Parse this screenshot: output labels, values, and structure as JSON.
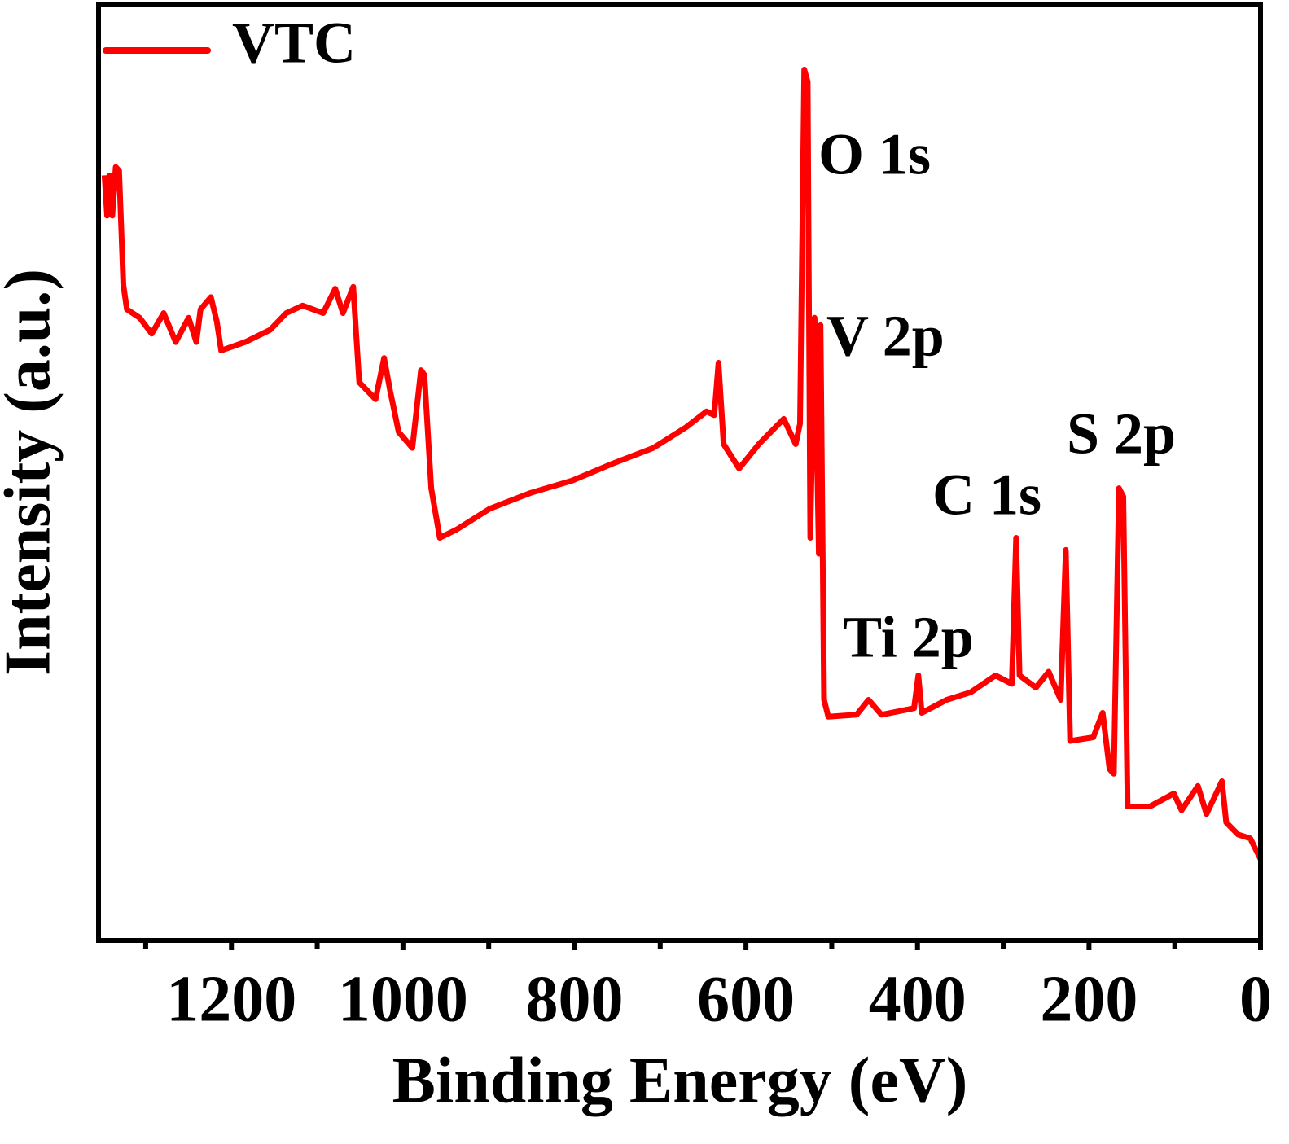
{
  "chart_data": {
    "type": "line",
    "xlabel": "Binding Energy (eV)",
    "ylabel": "Intensity (a.u.)",
    "xlim": [
      1355,
      0
    ],
    "ylim": [
      0,
      100
    ],
    "xticks": [
      1200,
      1000,
      800,
      600,
      400,
      200,
      0
    ],
    "xminor": [
      1300,
      1100,
      900,
      700,
      500,
      300,
      100
    ],
    "legend": "upper left",
    "annotations": [
      "O 1s",
      "V 2p",
      "Ti 2p",
      "C 1s",
      "S 2p"
    ],
    "series": [
      {
        "name": "VTC",
        "color": "#ff0000",
        "x": [
          1348,
          1345,
          1342,
          1339,
          1335,
          1331,
          1326,
          1322,
          1307,
          1293,
          1279,
          1265,
          1250,
          1241,
          1236,
          1224,
          1217,
          1212,
          1184,
          1155,
          1136,
          1117,
          1093,
          1079,
          1070,
          1058,
          1051,
          1032,
          1022,
          1015,
          1005,
          989,
          979,
          975,
          967,
          957,
          937,
          899,
          851,
          803,
          756,
          708,
          670,
          646,
          637,
          632,
          626,
          608,
          585,
          556,
          542,
          537,
          532,
          528,
          525,
          520,
          515,
          513,
          509,
          504,
          471,
          457,
          442,
          404,
          399,
          395,
          366,
          338,
          309,
          290,
          285,
          281,
          262,
          247,
          233,
          227,
          222,
          195,
          184,
          176,
          171,
          165,
          160,
          155,
          129,
          101,
          92,
          73,
          63,
          45,
          40,
          26,
          12,
          0
        ],
        "values": [
          81.7,
          77.4,
          81.7,
          77.4,
          82.6,
          82.2,
          70.0,
          67.4,
          66.5,
          64.8,
          67.0,
          63.9,
          66.5,
          63.9,
          67.4,
          68.7,
          66.1,
          63.0,
          63.9,
          65.2,
          67.0,
          67.8,
          67.0,
          69.6,
          67.0,
          69.8,
          59.6,
          57.8,
          62.2,
          58.7,
          54.3,
          52.6,
          60.9,
          60.4,
          48.3,
          43.0,
          43.9,
          46.1,
          47.8,
          49.1,
          50.9,
          52.6,
          54.8,
          56.5,
          56.1,
          61.7,
          53.0,
          50.4,
          53.0,
          55.7,
          53.0,
          55.2,
          93.0,
          91.7,
          43.0,
          66.5,
          41.3,
          65.7,
          25.7,
          23.9,
          24.1,
          25.7,
          24.1,
          24.8,
          28.3,
          24.3,
          25.7,
          26.5,
          28.3,
          27.4,
          43.0,
          28.3,
          27.0,
          28.7,
          25.7,
          41.7,
          21.3,
          21.7,
          24.3,
          18.3,
          17.8,
          48.3,
          47.4,
          14.3,
          14.3,
          15.7,
          13.9,
          16.5,
          13.5,
          17.0,
          12.6,
          11.3,
          10.9,
          8.7
        ]
      }
    ]
  }
}
